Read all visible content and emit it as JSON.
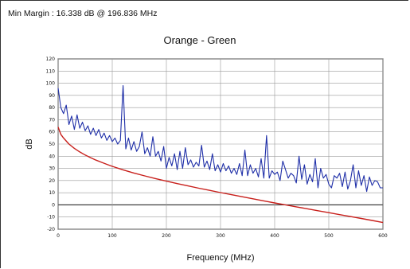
{
  "header": {
    "min_margin": "Min Margin : 16.338 dB @ 196.836 MHz"
  },
  "chart_data": {
    "type": "line",
    "title": "Orange - Green",
    "xlabel": "Frequency (MHz)",
    "ylabel": "dB",
    "xlim": [
      0,
      600
    ],
    "ylim": [
      -20,
      120
    ],
    "xticks": [
      0,
      100,
      200,
      300,
      400,
      500,
      600
    ],
    "yticks": [
      -20,
      -10,
      0,
      10,
      20,
      30,
      40,
      50,
      60,
      70,
      80,
      90,
      100,
      110,
      120
    ],
    "grid": true,
    "series": [
      {
        "color": "#1f2fa8",
        "x": [
          0,
          5,
          10,
          15,
          20,
          25,
          30,
          35,
          40,
          45,
          50,
          55,
          60,
          65,
          70,
          75,
          80,
          85,
          90,
          95,
          100,
          105,
          110,
          115,
          120,
          125,
          130,
          135,
          140,
          145,
          150,
          155,
          160,
          165,
          170,
          175,
          180,
          185,
          190,
          195,
          200,
          205,
          210,
          215,
          220,
          225,
          230,
          235,
          240,
          245,
          250,
          255,
          260,
          265,
          270,
          275,
          280,
          285,
          290,
          295,
          300,
          305,
          310,
          315,
          320,
          325,
          330,
          335,
          340,
          345,
          350,
          355,
          360,
          365,
          370,
          375,
          380,
          385,
          390,
          395,
          400,
          405,
          410,
          415,
          420,
          425,
          430,
          435,
          440,
          445,
          450,
          455,
          460,
          465,
          470,
          475,
          480,
          485,
          490,
          495,
          500,
          505,
          510,
          515,
          520,
          525,
          530,
          535,
          540,
          545,
          550,
          555,
          560,
          565,
          570,
          575,
          580,
          585,
          590,
          595,
          600
        ],
        "values": [
          96,
          80,
          75,
          82,
          66,
          73,
          62,
          74,
          63,
          68,
          61,
          65,
          58,
          63,
          57,
          62,
          55,
          59,
          53,
          57,
          52,
          55,
          50,
          53,
          98,
          46,
          55,
          45,
          52,
          44,
          48,
          60,
          42,
          47,
          40,
          56,
          40,
          44,
          36,
          48,
          30,
          39,
          32,
          42,
          29,
          44,
          30,
          47,
          33,
          37,
          31,
          35,
          32,
          49,
          31,
          36,
          29,
          42,
          28,
          33,
          27,
          34,
          28,
          32,
          26,
          30,
          25,
          34,
          24,
          45,
          24,
          33,
          26,
          30,
          23,
          38,
          22,
          57,
          22,
          28,
          25,
          27,
          20,
          36,
          29,
          22,
          26,
          24,
          18,
          40,
          21,
          33,
          17,
          25,
          19,
          38,
          14,
          30,
          22,
          25,
          17,
          14,
          24,
          22,
          26,
          15,
          27,
          13,
          20,
          33,
          14,
          28,
          16,
          24,
          11,
          23,
          16,
          20,
          19,
          14,
          14
        ]
      },
      {
        "color": "#c8201c",
        "x": [
          0,
          5,
          10,
          20,
          30,
          40,
          50,
          60,
          70,
          80,
          90,
          100,
          120,
          140,
          160,
          180,
          200,
          220,
          240,
          260,
          280,
          300,
          320,
          340,
          360,
          380,
          400,
          420,
          440,
          460,
          480,
          500,
          520,
          540,
          560,
          580,
          600
        ],
        "values": [
          64,
          58,
          55,
          50,
          46.5,
          43.5,
          41,
          38.8,
          36.8,
          35,
          33.3,
          31.7,
          28.8,
          26.2,
          23.8,
          21.6,
          19.5,
          17.5,
          15.6,
          13.7,
          11.9,
          10.1,
          8.4,
          6.7,
          5,
          3.3,
          1.6,
          0,
          -1.6,
          -3.2,
          -4.8,
          -6.4,
          -8,
          -9.6,
          -11.2,
          -12.8,
          -14.5
        ]
      }
    ]
  }
}
